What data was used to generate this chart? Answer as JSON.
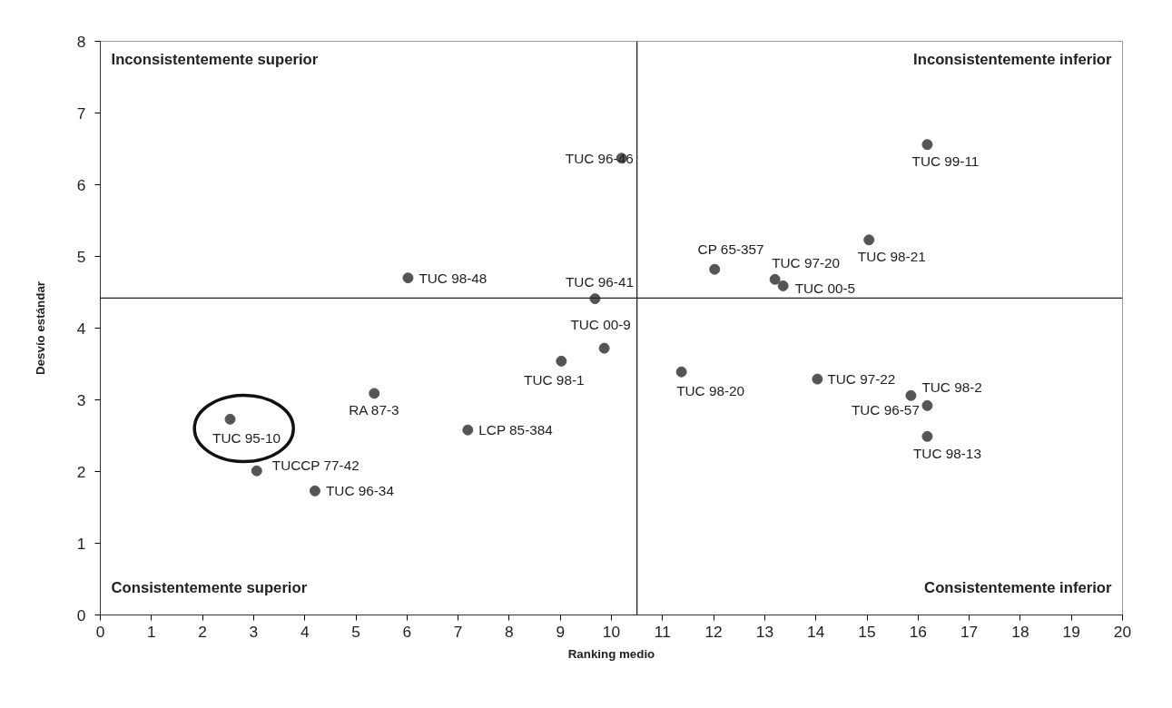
{
  "chart_data": {
    "type": "scatter",
    "xlabel": "Ranking medio",
    "ylabel": "Desvío estándar",
    "xlim": [
      0,
      20
    ],
    "xticks": [
      0,
      1,
      2,
      3,
      4,
      5,
      6,
      7,
      8,
      9,
      10,
      11,
      12,
      13,
      14,
      15,
      16,
      17,
      18,
      19,
      20
    ],
    "ylim": [
      0,
      8
    ],
    "yticks": [
      0,
      1,
      2,
      3,
      4,
      5,
      6,
      7,
      8
    ],
    "grid": false,
    "marker": "circle",
    "annotations": [
      "Inconsistentemente superior",
      "Inconsistentemente inferior",
      "Consistentemente superior",
      "Consistentemente inferior"
    ],
    "ref_lines": [
      {
        "axis": "x",
        "value": 10.5,
        "label": null,
        "color": "#222222"
      },
      {
        "axis": "y",
        "value": 4.42,
        "label": null,
        "color": "#222222"
      }
    ],
    "series": [
      {
        "name": "TUC 95-10",
        "color": "#555555",
        "x": [
          2.54
        ],
        "values": [
          2.73
        ]
      },
      {
        "name": "TUCCP 77-42",
        "color": "#555555",
        "x": [
          3.06
        ],
        "values": [
          2.01
        ]
      },
      {
        "name": "TUC 96-34",
        "color": "#555555",
        "x": [
          4.2
        ],
        "values": [
          1.73
        ]
      },
      {
        "name": "RA 87-3",
        "color": "#555555",
        "x": [
          5.36
        ],
        "values": [
          3.09
        ]
      },
      {
        "name": "LCP 85-384",
        "color": "#555555",
        "x": [
          7.19
        ],
        "values": [
          2.58
        ]
      },
      {
        "name": "TUC 98-48",
        "color": "#555555",
        "x": [
          6.02
        ],
        "values": [
          4.7
        ]
      },
      {
        "name": "TUC 98-1",
        "color": "#555555",
        "x": [
          9.02
        ],
        "values": [
          3.54
        ]
      },
      {
        "name": "TUC 96-46",
        "color": "#555555",
        "x": [
          10.2
        ],
        "values": [
          6.37
        ]
      },
      {
        "name": "TUC 96-41",
        "color": "#555555",
        "x": [
          9.68
        ],
        "values": [
          4.41
        ]
      },
      {
        "name": "TUC 00-9",
        "color": "#555555",
        "x": [
          9.86
        ],
        "values": [
          3.72
        ]
      },
      {
        "name": "TUC 98-20",
        "color": "#555555",
        "x": [
          11.37
        ],
        "values": [
          3.39
        ]
      },
      {
        "name": "CP 65-357",
        "color": "#555555",
        "x": [
          12.02
        ],
        "values": [
          4.82
        ]
      },
      {
        "name": "TUC 97-20",
        "color": "#555555",
        "x": [
          13.2
        ],
        "values": [
          4.68
        ]
      },
      {
        "name": "TUC 00-5",
        "color": "#555555",
        "x": [
          13.36
        ],
        "values": [
          4.59
        ]
      },
      {
        "name": "TUC 97-22",
        "color": "#555555",
        "x": [
          14.03
        ],
        "values": [
          3.29
        ]
      },
      {
        "name": "TUC 96-57",
        "color": "#555555",
        "x": [
          15.86
        ],
        "values": [
          3.06
        ]
      },
      {
        "name": "TUC 98-2",
        "color": "#555555",
        "x": [
          16.18
        ],
        "values": [
          2.92
        ]
      },
      {
        "name": "TUC 98-13",
        "color": "#555555",
        "x": [
          16.18
        ],
        "values": [
          2.49
        ]
      },
      {
        "name": "TUC 99-11",
        "color": "#555555",
        "x": [
          16.18
        ],
        "values": [
          6.56
        ]
      },
      {
        "name": "TUC 98-21",
        "color": "#555555",
        "x": [
          15.04
        ],
        "values": [
          5.23
        ]
      }
    ]
  }
}
